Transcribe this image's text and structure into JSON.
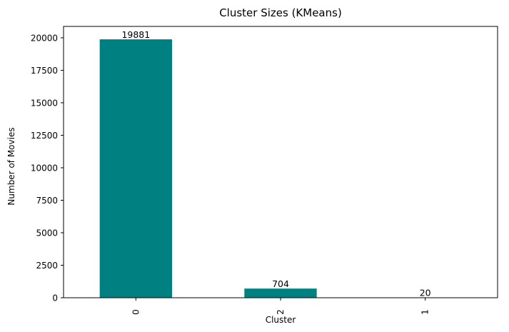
{
  "chart_data": {
    "type": "bar",
    "title": "Cluster Sizes (KMeans)",
    "xlabel": "Cluster",
    "ylabel": "Number of Movies",
    "categories": [
      "0",
      "2",
      "1"
    ],
    "values": [
      19881,
      704,
      20
    ],
    "data_labels": [
      "19881",
      "704",
      "20"
    ],
    "ylim": [
      0,
      20875
    ],
    "yticks": [
      0,
      2500,
      5000,
      7500,
      10000,
      12500,
      15000,
      17500,
      20000
    ],
    "ytick_labels": [
      "0",
      "2500",
      "5000",
      "7500",
      "10000",
      "12500",
      "15000",
      "17500",
      "20000"
    ],
    "bar_color": "#008080",
    "grid": false,
    "legend": "none"
  }
}
